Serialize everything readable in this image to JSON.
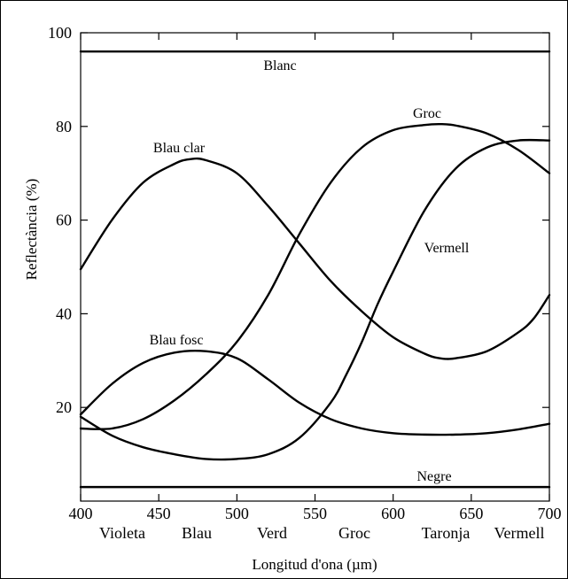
{
  "chart_data": {
    "type": "line",
    "xlabel": "Longitud d'ona (µm)",
    "ylabel": "Reflectància (%)",
    "xlim": [
      400,
      700
    ],
    "ylim": [
      0,
      100
    ],
    "x_ticks": [
      400,
      450,
      500,
      550,
      600,
      650,
      700
    ],
    "y_ticks": [
      20,
      40,
      60,
      80,
      100
    ],
    "color_bands": [
      "Violeta",
      "Blau",
      "Verd",
      "Groc",
      "Taronja",
      "Vermell"
    ],
    "grid": false,
    "series": [
      {
        "name": "Blanc",
        "x": [
          400,
          700
        ],
        "y": [
          96,
          96
        ]
      },
      {
        "name": "Negre",
        "x": [
          400,
          700
        ],
        "y": [
          3,
          3
        ]
      },
      {
        "name": "Blau clar",
        "x": [
          400,
          420,
          440,
          460,
          470,
          480,
          500,
          520,
          540,
          560,
          580,
          600,
          620,
          630,
          640,
          660,
          680,
          690,
          700
        ],
        "y": [
          49.5,
          60,
          68,
          72,
          73,
          72.8,
          70,
          63,
          55,
          47,
          40.5,
          35,
          31.5,
          30.5,
          30.5,
          32,
          36,
          39,
          44
        ]
      },
      {
        "name": "Blau fosc",
        "x": [
          400,
          420,
          440,
          460,
          480,
          500,
          520,
          540,
          560,
          580,
          600,
          620,
          640,
          660,
          680,
          700
        ],
        "y": [
          18.5,
          25,
          29.5,
          31.7,
          32,
          30.5,
          26,
          21,
          17.5,
          15.5,
          14.5,
          14.2,
          14.2,
          14.5,
          15.3,
          16.5
        ]
      },
      {
        "name": "Groc",
        "x": [
          400,
          420,
          440,
          460,
          480,
          500,
          520,
          540,
          560,
          580,
          600,
          620,
          630,
          640,
          660,
          680,
          700
        ],
        "y": [
          15.5,
          15.5,
          17.5,
          21.5,
          27,
          34,
          44,
          57,
          68,
          75.5,
          79.2,
          80.3,
          80.5,
          80.2,
          78.5,
          75,
          70
        ]
      },
      {
        "name": "Vermell",
        "x": [
          400,
          420,
          440,
          460,
          480,
          500,
          520,
          540,
          560,
          570,
          580,
          590,
          600,
          620,
          640,
          660,
          680,
          700
        ],
        "y": [
          18,
          14,
          11.5,
          10,
          9,
          9,
          10,
          13.5,
          21,
          27,
          34,
          42,
          49,
          62,
          71,
          75.5,
          77,
          77
        ]
      }
    ]
  }
}
